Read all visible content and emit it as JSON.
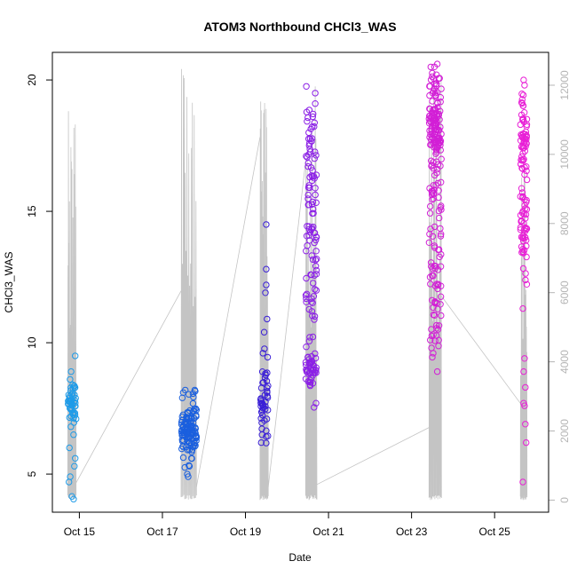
{
  "chart_data": {
    "type": "scatter",
    "title": "ATOM3 Northbound CHCl3_WAS",
    "xlabel": "Date",
    "ylabel": "CHCl3_WAS",
    "xlim": [
      14.35,
      26.3
    ],
    "ylim": [
      3.55,
      21.05
    ],
    "y2lim": [
      -350,
      12950
    ],
    "x_ticks": [
      {
        "value": 15,
        "label": "Oct 15"
      },
      {
        "value": 17,
        "label": "Oct 17"
      },
      {
        "value": 19,
        "label": "Oct 19"
      },
      {
        "value": 21,
        "label": "Oct 21"
      },
      {
        "value": 23,
        "label": "Oct 23"
      },
      {
        "value": 25,
        "label": "Oct 25"
      }
    ],
    "y_ticks": [
      5,
      10,
      15,
      20
    ],
    "y2_ticks": [
      0,
      2000,
      4000,
      6000,
      8000,
      10000,
      12000
    ],
    "grid": false,
    "legend": "none",
    "secondary_series": {
      "color": "#c4c4c4",
      "note_x_unit": "day of October",
      "flights": [
        {
          "start": 14.72,
          "end": 14.92,
          "peak": 11400
        },
        {
          "start": 17.45,
          "end": 17.82,
          "peak": 12600
        },
        {
          "start": 19.35,
          "end": 19.55,
          "peak": 12300
        },
        {
          "start": 20.45,
          "end": 20.72,
          "peak": 12150
        },
        {
          "start": 23.42,
          "end": 23.72,
          "peak": 12500
        },
        {
          "start": 25.62,
          "end": 25.78,
          "peak": 9800
        }
      ],
      "connectors": [
        {
          "x": [
            14.92,
            17.45
          ],
          "y": [
            500,
            6050
          ]
        },
        {
          "x": [
            17.82,
            19.35
          ],
          "y": [
            380,
            10500
          ]
        },
        {
          "x": [
            19.55,
            20.45
          ],
          "y": [
            380,
            9800
          ]
        },
        {
          "x": [
            20.72,
            23.42
          ],
          "y": [
            450,
            2100
          ]
        },
        {
          "x": [
            23.72,
            25.62
          ],
          "y": [
            5900,
            2800
          ]
        }
      ]
    },
    "series": [
      {
        "color": "#1e9be8",
        "x_range": [
          14.72,
          14.92
        ],
        "clusters": [
          {
            "center": 7.7,
            "spread": 0.5,
            "n": 45
          }
        ],
        "extra": [
          [
            14.75,
            4.7
          ],
          [
            14.78,
            4.9
          ],
          [
            14.82,
            4.15
          ],
          [
            14.86,
            4.05
          ],
          [
            14.88,
            5.3
          ],
          [
            14.9,
            5.6
          ],
          [
            14.76,
            6.0
          ],
          [
            14.84,
            8.4
          ],
          [
            14.88,
            8.35
          ],
          [
            14.9,
            9.5
          ],
          [
            14.8,
            8.9
          ],
          [
            14.86,
            6.5
          ],
          [
            14.92,
            7.1
          ]
        ]
      },
      {
        "color": "#1a5fde",
        "x_range": [
          17.45,
          17.82
        ],
        "clusters": [
          {
            "center": 6.7,
            "spread": 0.55,
            "n": 120
          }
        ],
        "extra": [
          [
            17.5,
            8.1
          ],
          [
            17.55,
            8.2
          ],
          [
            17.6,
            5.0
          ],
          [
            17.65,
            5.3
          ],
          [
            17.7,
            5.6
          ],
          [
            17.78,
            8.2
          ],
          [
            17.62,
            4.9
          ],
          [
            17.48,
            7.9
          ]
        ]
      },
      {
        "color": "#3a1fd6",
        "x_range": [
          19.35,
          19.55
        ],
        "clusters": [
          {
            "center": 7.8,
            "spread": 0.7,
            "n": 45
          }
        ],
        "extra": [
          [
            19.5,
            14.5
          ],
          [
            19.5,
            12.8
          ],
          [
            19.48,
            11.9
          ],
          [
            19.5,
            12.2
          ],
          [
            19.45,
            10.4
          ],
          [
            19.42,
            9.6
          ],
          [
            19.52,
            10.9
          ],
          [
            19.38,
            6.2
          ],
          [
            19.4,
            6.5
          ]
        ]
      },
      {
        "color": "#8b1fe6",
        "x_range": [
          20.45,
          20.72
        ],
        "clusters": [
          {
            "center": 8.9,
            "spread": 0.35,
            "n": 40
          },
          {
            "center": 13.5,
            "spread": 2.5,
            "n": 80
          },
          {
            "center": 17.8,
            "spread": 1.0,
            "n": 25
          }
        ],
        "extra": [
          [
            20.68,
            19.5
          ],
          [
            20.68,
            19.1
          ],
          [
            20.7,
            7.7
          ],
          [
            20.62,
            18.6
          ],
          [
            20.55,
            16.3
          ]
        ]
      },
      {
        "color": "#d21fd6",
        "x_range": [
          23.42,
          23.72
        ],
        "clusters": [
          {
            "center": 18.2,
            "spread": 1.0,
            "n": 130
          },
          {
            "center": 14.0,
            "spread": 2.0,
            "n": 60
          },
          {
            "center": 11.5,
            "spread": 1.2,
            "n": 25
          }
        ],
        "extra": [
          [
            23.55,
            20.5
          ],
          [
            23.6,
            20.2
          ],
          [
            23.52,
            9.6
          ],
          [
            23.48,
            9.8
          ],
          [
            23.62,
            8.9
          ],
          [
            23.45,
            10.1
          ]
        ]
      },
      {
        "color": "#e81fd6",
        "x_range": [
          25.62,
          25.78
        ],
        "clusters": [
          {
            "center": 18.0,
            "spread": 0.8,
            "n": 55
          },
          {
            "center": 14.2,
            "spread": 0.9,
            "n": 50
          }
        ],
        "extra": [
          [
            25.7,
            20.0
          ],
          [
            25.72,
            19.8
          ],
          [
            25.68,
            11.3
          ],
          [
            25.72,
            9.4
          ],
          [
            25.7,
            8.9
          ],
          [
            25.74,
            8.3
          ],
          [
            25.72,
            7.6
          ],
          [
            25.74,
            6.9
          ],
          [
            25.76,
            6.2
          ],
          [
            25.68,
            4.7
          ],
          [
            25.7,
            7.7
          ],
          [
            25.72,
            16.4
          ],
          [
            25.68,
            15.0
          ]
        ]
      }
    ]
  }
}
